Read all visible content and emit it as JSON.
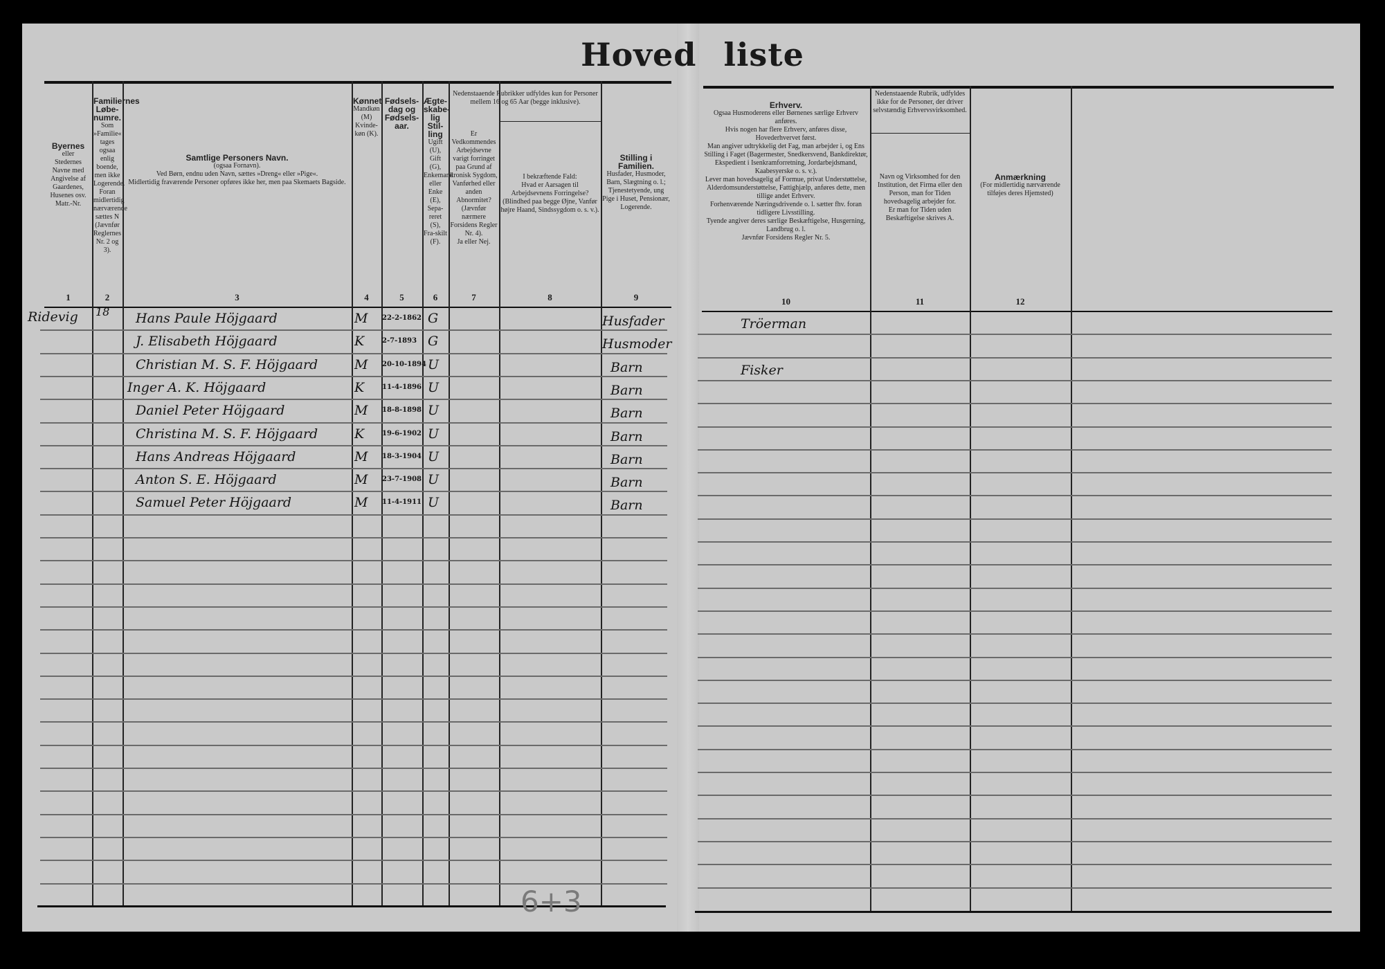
{
  "title": "Hoved  liste",
  "left_columns": [
    {
      "num": "1",
      "head": "Byernes",
      "text": "eller\nStedernes\nNavne med Angivelse af Gaardenes, Husenes osv.\nMatr.-Nr."
    },
    {
      "num": "2",
      "head": "Familiernes Løbe-numre.",
      "text": "Som »Familie« tages ogsaa enlig boende, men ikke Logerende. Foran midlertidig nærværende sættes N (Jævnfør Reglernes Nr. 2 og 3)."
    },
    {
      "num": "3",
      "head": "Samtlige Personers Navn.",
      "text": "(ogsaa Fornavn).\nVed Børn, endnu uden Navn, sættes »Dreng« eller »Pige«.\nMidlertidig fraværende Personer opføres ikke her, men paa Skemaets Bagside."
    },
    {
      "num": "4",
      "head": "Kønnet",
      "text": "Mandkøn (M)\nKvinde-køn (K)."
    },
    {
      "num": "5",
      "head": "Fødsels-dag og Fødsels-aar.",
      "text": ""
    },
    {
      "num": "6",
      "head": "Ægte-skabe-lig Stil-ling",
      "text": "Ugift (U),\nGift (G),\nEnkemand eller Enke (E),\nSepa-reret (S),\nFra-skilt (F)."
    },
    {
      "num": "7",
      "head": "",
      "text": "Er Vedkommendes Arbejdsevne varigt forringet paa Grund af kronisk Sygdom, Vanførhed eller anden Abnormitet? (Jævnfør nærmere Forsidens Regler Nr. 4).\nJa eller Nej."
    },
    {
      "num": "8",
      "head": "",
      "text": "I bekræftende Fald:\nHvad er Aarsagen til Arbejdsevnens Forringelse?\n(Blindhed paa begge Øjne, Vanfør højre Haand, Sindssygdom o. s. v.)."
    },
    {
      "num": "9",
      "head": "Stilling i Familien.",
      "text": "Husfader, Husmoder, Barn, Slægtning o. l.; Tjenestetyende, ung Pige i Huset, Pensionær, Logerende."
    }
  ],
  "group_7_8_note": "Nedenstaaende Rubrikker udfyldes kun for Personer mellem 16 og 65 Aar (begge inklusive).",
  "right_columns": [
    {
      "num": "10",
      "head": "Erhverv.",
      "text": "Ogsaa Husmoderens eller Børnenes særlige Erhverv anføres.\nHvis nogen har flere Erhverv, anføres disse, Hovederhvervet først.\nMan angiver udtrykkelig det Fag, man arbejder i, og Ens Stilling i Faget (Bagermester, Snedkersvend, Bankdirektør, Ekspedient i Isenkramforretning, Jordarbejdsmand, Kaabesyerske o. s. v.).\nLever man hovedsagelig af Formue, privat Understøttelse, Alderdomsunderstøttelse, Fattighjælp, anføres dette, men tillige andet Erhverv.\nForhenværende Næringsdrivende o. l. sætter fhv. foran tidligere Livsstilling.\nTyende angiver deres særlige Beskæftigelse, Husgerning, Landbrug o. l.\nJævnfør Forsidens Regler Nr. 5."
    },
    {
      "num": "11",
      "head": "",
      "text": "Navn og Virksomhed for den Institution, det Firma eller den Person, man for Tiden hovedsagelig arbejder for.\nEr man for Tiden uden Beskæftigelse skrives A."
    },
    {
      "num": "12",
      "head": "Anmærkning",
      "text": "(For midlertidig nærværende tilføjes deres Hjemsted)"
    }
  ],
  "col11_note": "Nedenstaaende Rubrik, udfyldes ikke for de Personer, der driver selvstændig Erhvervsvirksomhed.",
  "place": "Ridevig",
  "family_number": "18",
  "persons": [
    {
      "name": "Hans Paule Höjgaard",
      "sex": "M",
      "born": "22-2-1862",
      "marital": "G",
      "position": "Husfader",
      "occupation": "Tröerman"
    },
    {
      "name": "J. Elisabeth Höjgaard",
      "sex": "K",
      "born": "2-7-1893",
      "marital": "G",
      "position": "Husmoder",
      "occupation": ""
    },
    {
      "name": "Christian M. S. F. Höjgaard",
      "sex": "M",
      "born": "20-10-1894",
      "marital": "U",
      "position": "Barn",
      "occupation": "Fisker"
    },
    {
      "name": "Inger A. K. Höjgaard",
      "sex": "K",
      "born": "11-4-1896",
      "marital": "U",
      "position": "Barn",
      "occupation": ""
    },
    {
      "name": "Daniel Peter Höjgaard",
      "sex": "M",
      "born": "18-8-1898",
      "marital": "U",
      "position": "Barn",
      "occupation": ""
    },
    {
      "name": "Christina M. S. F. Höjgaard",
      "sex": "K",
      "born": "19-6-1902",
      "marital": "U",
      "position": "Barn",
      "occupation": ""
    },
    {
      "name": "Hans Andreas Höjgaard",
      "sex": "M",
      "born": "18-3-1904",
      "marital": "U",
      "position": "Barn",
      "occupation": ""
    },
    {
      "name": "Anton S. E. Höjgaard",
      "sex": "M",
      "born": "23-7-1908",
      "marital": "U",
      "position": "Barn",
      "occupation": ""
    },
    {
      "name": "Samuel Peter Höjgaard",
      "sex": "M",
      "born": "11-4-1911",
      "marital": "U",
      "position": "Barn",
      "occupation": ""
    }
  ],
  "pencil_note": "6+3"
}
